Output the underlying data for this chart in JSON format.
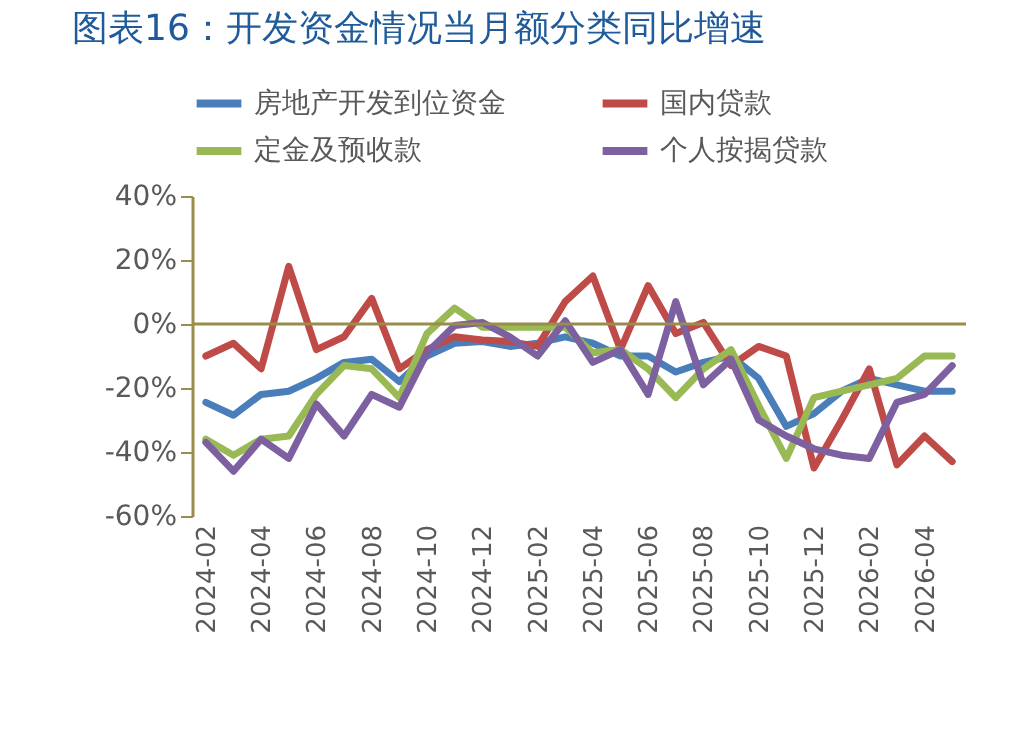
{
  "chart_data": {
    "type": "line",
    "title": "图表16：开发资金情况当月额分类同比增速",
    "categories": [
      "2024-02",
      null,
      "2024-04",
      null,
      "2024-06",
      null,
      "2024-08",
      null,
      "2024-10",
      null,
      "2024-12",
      null,
      "2025-02",
      null,
      "2025-04",
      null,
      "2025-06",
      null,
      "2025-08",
      null,
      "2025-10",
      null,
      "2025-12",
      null,
      "2026-02",
      null,
      "2026-04",
      null
    ],
    "series": [
      {
        "name": "房地产开发到位资金",
        "color": "#4a7ebb",
        "values": [
          -24.5,
          -28.5,
          -22,
          -21,
          -17,
          -12,
          -11,
          -18,
          -10,
          -6,
          -5.5,
          -7,
          -6,
          -4,
          -6,
          -10,
          -10,
          -15,
          -12,
          -10,
          -17,
          -32,
          -28,
          -21,
          -17,
          -19,
          -21,
          -21
        ]
      },
      {
        "name": "国内贷款",
        "color": "#be4b48",
        "values": [
          -10,
          -6,
          -14,
          18,
          -8,
          -4,
          8,
          -14,
          -8,
          -4,
          -5,
          -5.5,
          -7,
          7,
          15,
          -8,
          12,
          -3,
          0.5,
          -13,
          -7,
          -10,
          -45,
          -30,
          -14,
          -44,
          -35,
          -43
        ]
      },
      {
        "name": "定金及预收款",
        "color": "#98b954",
        "values": [
          -36,
          -41,
          -36,
          -35,
          -22,
          -13,
          -14,
          -23,
          -3,
          5,
          -1,
          -1,
          -1,
          -1,
          -9,
          -8,
          -14,
          -23,
          -14,
          -8,
          -25.5,
          -42,
          -23,
          -21,
          -19,
          -17,
          -10,
          -10
        ]
      },
      {
        "name": "个人按揭贷款",
        "color": "#7d60a0",
        "values": [
          -37,
          -46,
          -36,
          -42,
          -25,
          -35,
          -22,
          -26,
          -9,
          -0.5,
          0.5,
          -4,
          -10,
          1,
          -12,
          -8,
          -22,
          7,
          -19,
          -11,
          -30,
          -35,
          -39,
          -41,
          -42,
          -24.5,
          -22,
          -13
        ]
      }
    ],
    "ylim": [
      -60,
      40
    ],
    "yticks": [
      {
        "value": -60,
        "label": "-60%"
      },
      {
        "value": -40,
        "label": "-40%"
      },
      {
        "value": -20,
        "label": "-20%"
      },
      {
        "value": 0,
        "label": "0%"
      },
      {
        "value": 20,
        "label": "20%"
      },
      {
        "value": 40,
        "label": "40%"
      }
    ],
    "ref_lines": [
      {
        "axis": "y",
        "value": 0,
        "color": "#9a8c4a"
      }
    ],
    "legend": "top"
  }
}
